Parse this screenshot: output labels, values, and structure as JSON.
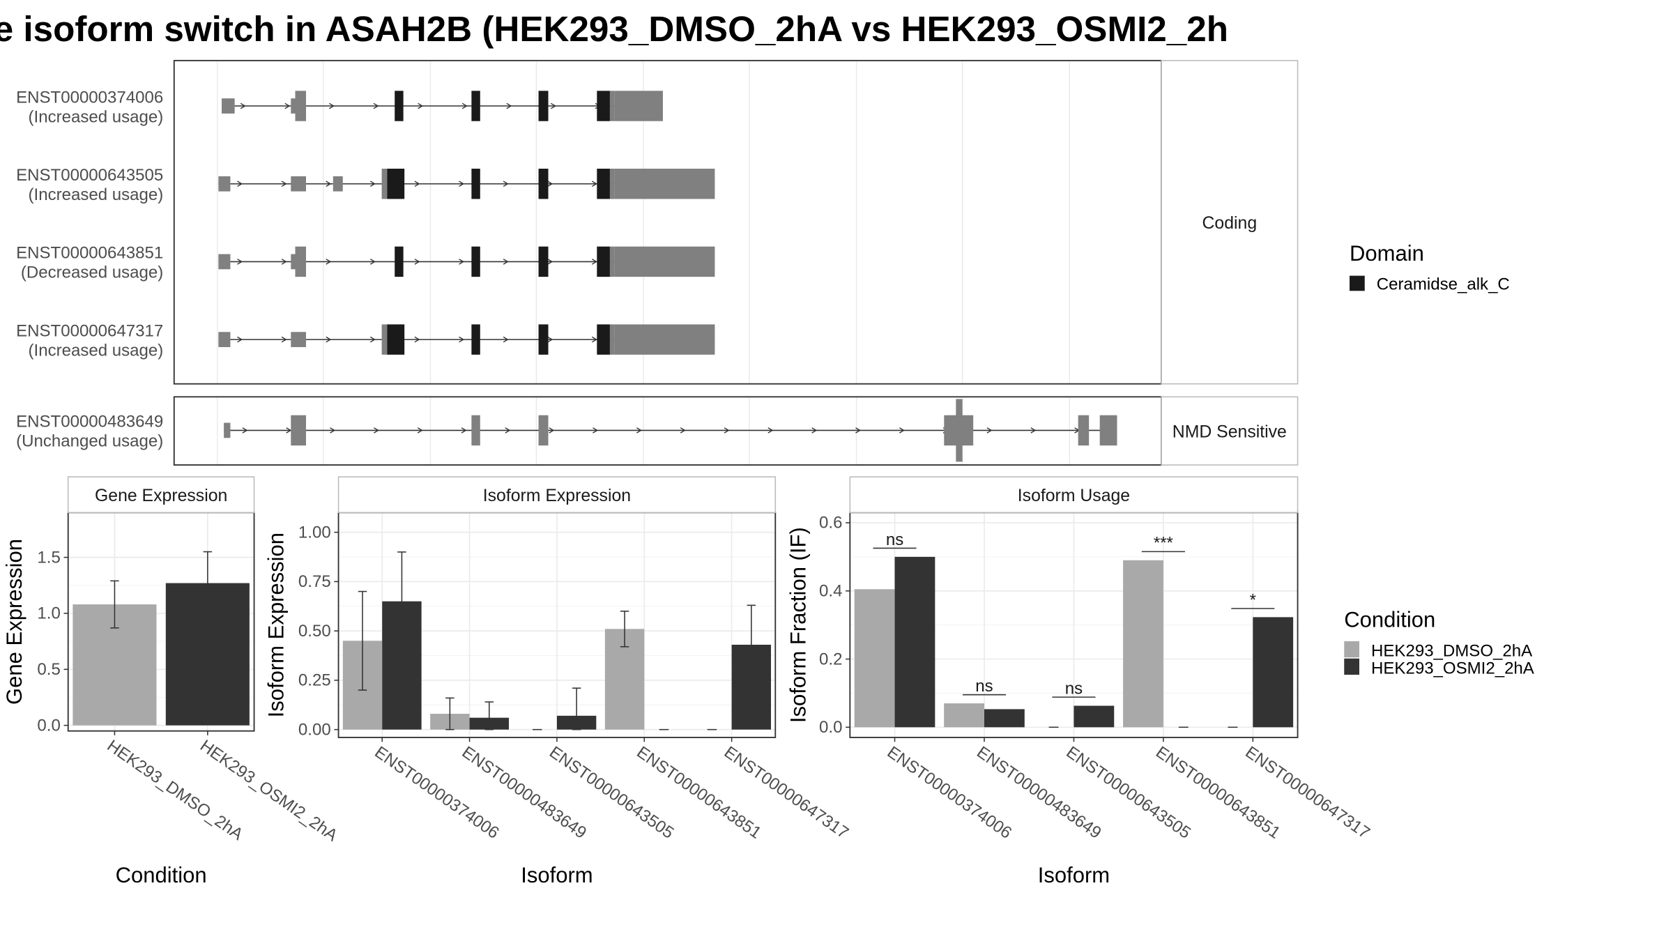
{
  "title": "e isoform switch in ASAH2B (HEK293_DMSO_2hA vs HEK293_OSMI2_2h",
  "colors": {
    "dmso": "#a9a9a9",
    "osmi": "#333333",
    "domain": "#1a1a1a",
    "exon": "#808080",
    "grid": "#ebebeb",
    "frame": "#333333",
    "strip_fill": "#ffffff",
    "strip_border": "#bbbbbb"
  },
  "legend_domain": {
    "title": "Domain",
    "items": [
      "Ceramidse_alk_C"
    ]
  },
  "legend_condition": {
    "title": "Condition",
    "items": [
      "HEK293_DMSO_2hA",
      "HEK293_OSMI2_2hA"
    ]
  },
  "chart_data": [
    {
      "type": "gene-structure",
      "name": "transcript-structure",
      "groups": [
        {
          "label": "Coding",
          "transcripts": [
            {
              "id": "ENST00000374006",
              "usage": "(Increased usage)"
            },
            {
              "id": "ENST00000643505",
              "usage": "(Increased usage)"
            },
            {
              "id": "ENST00000643851",
              "usage": "(Decreased usage)"
            },
            {
              "id": "ENST00000647317",
              "usage": "(Increased usage)"
            }
          ]
        },
        {
          "label": "NMD Sensitive",
          "transcripts": [
            {
              "id": "ENST00000483649",
              "usage": "(Unchanged usage)"
            }
          ]
        }
      ]
    },
    {
      "type": "bar",
      "name": "gene-expression",
      "title": "Gene Expression",
      "xlabel": "Condition",
      "ylabel": "Gene Expression",
      "ylim": [
        -0.05,
        1.9
      ],
      "yticks": [
        "0.0",
        "0.5",
        "1.0",
        "1.5"
      ],
      "categories": [
        "HEK293_DMSO_2hA",
        "HEK293_OSMI2_2hA"
      ],
      "values": [
        1.08,
        1.27
      ],
      "err_low": [
        0.87,
        1.0
      ],
      "err_high": [
        1.29,
        1.55
      ]
    },
    {
      "type": "bar",
      "name": "isoform-expression",
      "title": "Isoform Expression",
      "xlabel": "Isoform",
      "ylabel": "Isoform Expression",
      "ylim": [
        -0.04,
        1.1
      ],
      "yticks": [
        "0.00",
        "0.25",
        "0.50",
        "0.75",
        "1.00"
      ],
      "categories": [
        "ENST00000374006",
        "ENST00000483649",
        "ENST00000643505",
        "ENST00000643851",
        "ENST00000647317"
      ],
      "series": [
        {
          "name": "HEK293_DMSO_2hA",
          "values": [
            0.45,
            0.08,
            0.0,
            0.51,
            0.0
          ],
          "err_low": [
            0.2,
            0.0,
            null,
            0.42,
            null
          ],
          "err_high": [
            0.7,
            0.16,
            null,
            0.6,
            null
          ]
        },
        {
          "name": "HEK293_OSMI2_2hA",
          "values": [
            0.65,
            0.06,
            0.07,
            0.0,
            0.43
          ],
          "err_low": [
            0.4,
            0.0,
            0.0,
            null,
            0.22
          ],
          "err_high": [
            0.9,
            0.14,
            0.21,
            null,
            0.63
          ]
        }
      ]
    },
    {
      "type": "bar",
      "name": "isoform-usage",
      "title": "Isoform Usage",
      "xlabel": "Isoform",
      "ylabel": "Isoform Fraction (IF)",
      "ylim": [
        -0.03,
        0.63
      ],
      "yticks": [
        "0.0",
        "0.2",
        "0.4",
        "0.6"
      ],
      "categories": [
        "ENST00000374006",
        "ENST00000483649",
        "ENST00000643505",
        "ENST00000643851",
        "ENST00000647317"
      ],
      "series": [
        {
          "name": "HEK293_DMSO_2hA",
          "values": [
            0.405,
            0.07,
            0.0,
            0.49,
            0.0
          ]
        },
        {
          "name": "HEK293_OSMI2_2hA",
          "values": [
            0.5,
            0.053,
            0.063,
            0.0,
            0.323
          ]
        }
      ],
      "significance": [
        "ns",
        "ns",
        "ns",
        "***",
        "*"
      ]
    }
  ]
}
